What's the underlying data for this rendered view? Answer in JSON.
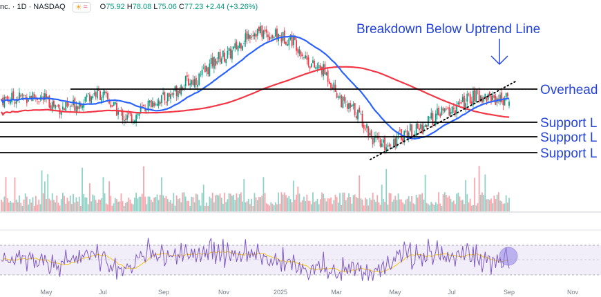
{
  "header": {
    "title": "nc. · 1D · NASDAQ",
    "ohlc": [
      {
        "label": "O",
        "value": "75.92"
      },
      {
        "label": "H",
        "value": "78.08"
      },
      {
        "label": "L",
        "value": "75.06"
      },
      {
        "label": "C",
        "value": "77.23"
      }
    ],
    "change": "+2.44 (+3.26%)"
  },
  "annotations": {
    "breakdown": "Breakdown Below Uptrend Line",
    "overhead": "Overhead",
    "support1": "Support L",
    "support2": "Support L",
    "support3": "Support L"
  },
  "colors": {
    "up": "#089981",
    "down": "#f23645",
    "ma50": "#2962ff",
    "ma200": "#f23645",
    "annotation_blue": "#2544d6",
    "rsi": "#7e57c2",
    "rsi_ma": "#f5c518"
  },
  "chart_data": {
    "type": "candlestick",
    "x_tick_labels": [
      "May",
      "Jul",
      "Sep",
      "Nov",
      "2025",
      "Mar",
      "May",
      "Jul",
      "Sep",
      "Nov"
    ],
    "price_anchors": {
      "description_series": [
        {
          "month": "Apr 2024",
          "close": 78
        },
        {
          "month": "May 2024",
          "close": 79
        },
        {
          "month": "Jun 2024",
          "close": 75
        },
        {
          "month": "Jul 2024",
          "close": 80
        },
        {
          "month": "Aug 2024",
          "close": 72
        },
        {
          "month": "Sep 2024",
          "close": 78
        },
        {
          "month": "Oct 2024",
          "close": 84
        },
        {
          "month": "Nov 2024",
          "close": 92
        },
        {
          "month": "Dec 2024",
          "close": 100
        },
        {
          "month": "Jan 2025",
          "close": 98
        },
        {
          "month": "Feb 2025",
          "close": 88
        },
        {
          "month": "Mar 2025",
          "close": 75
        },
        {
          "month": "Apr 2025",
          "close": 63
        },
        {
          "month": "May 2025",
          "close": 68
        },
        {
          "month": "Jun 2025",
          "close": 74
        },
        {
          "month": "Jul 2025",
          "close": 79
        },
        {
          "month": "Aug 2025",
          "close": 78
        }
      ]
    },
    "last_ohlc": {
      "open": 75.92,
      "high": 78.08,
      "low": 75.06,
      "close": 77.23
    }
  }
}
